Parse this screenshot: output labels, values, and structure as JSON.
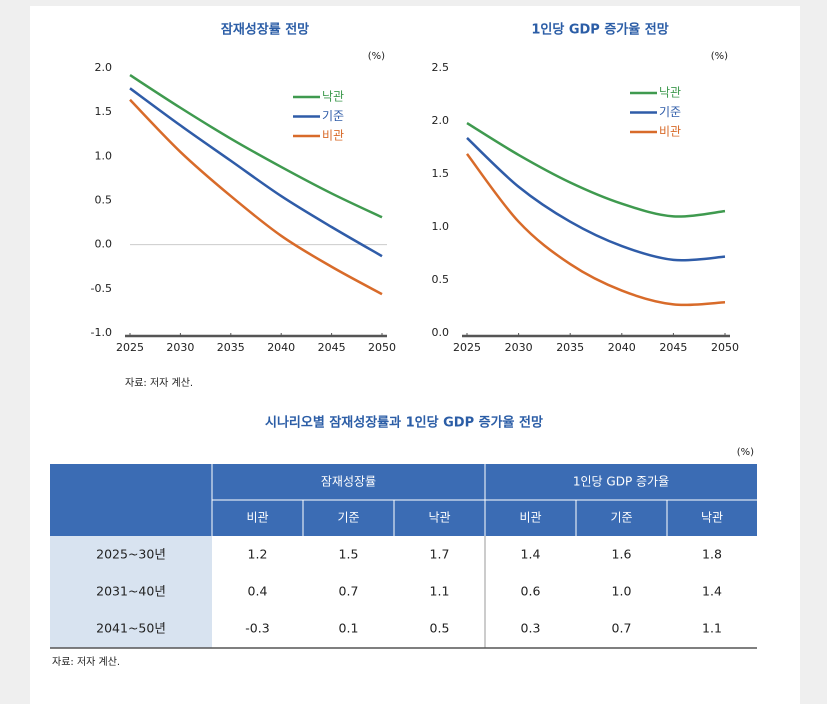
{
  "chart_data": [
    {
      "type": "line",
      "title": "잠재성장률 전망",
      "unit_label": "(%)",
      "x": [
        2025,
        2030,
        2035,
        2040,
        2045,
        2050
      ],
      "xlim": [
        2025,
        2050
      ],
      "xticks": [
        2025,
        2030,
        2035,
        2040,
        2045,
        2050
      ],
      "ylim": [
        -1,
        2
      ],
      "yticks": [
        {
          "value": 2,
          "label": "2.0"
        },
        1.5,
        {
          "value": 1,
          "label": "1.0"
        },
        0.5,
        {
          "value": 0,
          "label": "0.0"
        },
        -0.5,
        {
          "value": -1,
          "label": "-1.0"
        }
      ],
      "reference_line": 0,
      "legend": "upper right",
      "series": [
        {
          "name": "낙관",
          "color": "#3f9a4f",
          "values": [
            1.92,
            1.55,
            1.2,
            0.88,
            0.58,
            0.31
          ]
        },
        {
          "name": "기준",
          "color": "#2f5ca8",
          "values": [
            1.77,
            1.35,
            0.95,
            0.55,
            0.2,
            -0.13
          ]
        },
        {
          "name": "비관",
          "color": "#d86b2a",
          "values": [
            1.64,
            1.05,
            0.55,
            0.1,
            -0.25,
            -0.56
          ]
        }
      ]
    },
    {
      "type": "line",
      "title": "1인당 GDP 증가율 전망",
      "unit_label": "(%)",
      "x": [
        2025,
        2030,
        2035,
        2040,
        2045,
        2050
      ],
      "xlim": [
        2025,
        2050
      ],
      "xticks": [
        2025,
        2030,
        2035,
        2040,
        2045,
        2050
      ],
      "ylim": [
        0,
        2.5
      ],
      "yticks": [
        2.5,
        {
          "value": 2,
          "label": "2.0"
        },
        1.5,
        {
          "value": 1,
          "label": "1.0"
        },
        0.5,
        {
          "value": 0,
          "label": "0.0"
        }
      ],
      "legend": "upper right",
      "series": [
        {
          "name": "낙관",
          "color": "#3f9a4f",
          "values": [
            1.98,
            1.68,
            1.42,
            1.22,
            1.1,
            1.15
          ]
        },
        {
          "name": "기준",
          "color": "#2f5ca8",
          "values": [
            1.84,
            1.38,
            1.05,
            0.82,
            0.69,
            0.72
          ]
        },
        {
          "name": "비관",
          "color": "#d86b2a",
          "values": [
            1.69,
            1.05,
            0.65,
            0.4,
            0.27,
            0.29
          ]
        }
      ]
    }
  ],
  "chart_source": "자료: 저자 계산.",
  "table": {
    "title": "시나리오별 잠재성장률과 1인당 GDP 증가율 전망",
    "unit": "(%)",
    "groups": [
      "잠재성장률",
      "1인당 GDP 증가율"
    ],
    "subheaders": [
      "비관",
      "기준",
      "낙관",
      "비관",
      "기준",
      "낙관"
    ],
    "rows": [
      {
        "label": "2025~30년",
        "cells": [
          "1.2",
          "1.5",
          "1.7",
          "1.4",
          "1.6",
          "1.8"
        ]
      },
      {
        "label": "2031~40년",
        "cells": [
          "0.4",
          "0.7",
          "1.1",
          "0.6",
          "1.0",
          "1.4"
        ]
      },
      {
        "label": "2041~50년",
        "cells": [
          "-0.3",
          "0.1",
          "0.5",
          "0.3",
          "0.7",
          "1.1"
        ]
      }
    ],
    "source": "자료: 저자 계산."
  }
}
